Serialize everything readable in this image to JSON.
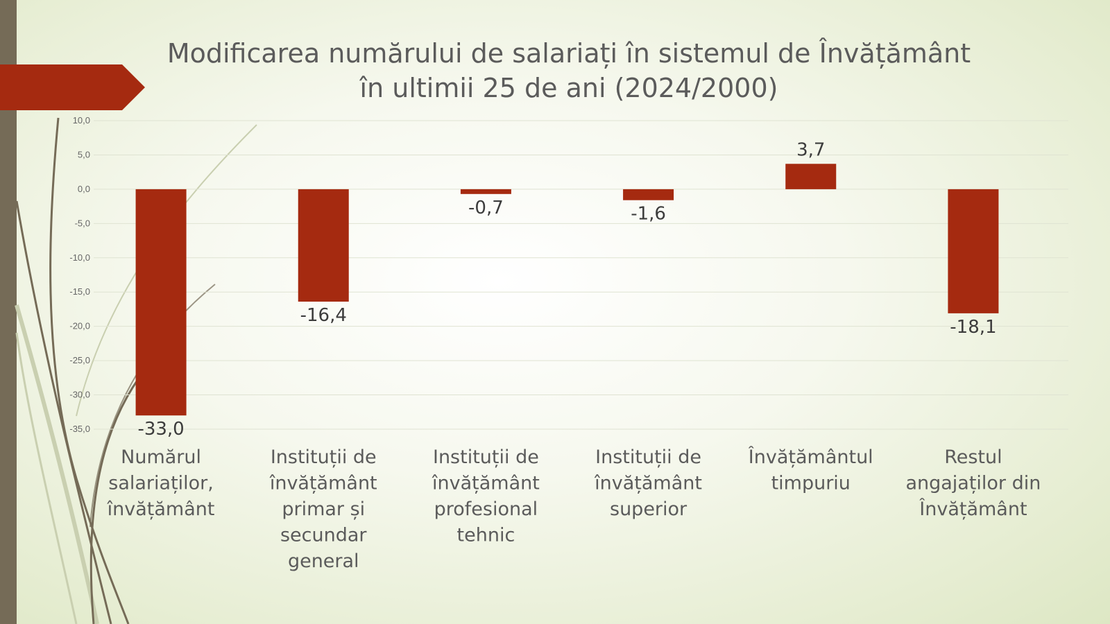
{
  "title": {
    "line1": "Modificarea numărului de salariați în sistemul de Învățământ",
    "line2": "în ultimii 25 de ani (2024/2000)"
  },
  "colors": {
    "bar": "#a52a10",
    "accent_banner": "#a52a10",
    "side_bar": "#756b57",
    "grid": "#dfe3d2",
    "text": "#4a4a4a"
  },
  "chart_data": {
    "type": "bar",
    "categories": [
      [
        "Numărul",
        "salariaților,",
        "învățământ"
      ],
      [
        "Instituții de",
        "învățământ",
        "primar și",
        "secundar",
        "general"
      ],
      [
        "Instituții de",
        "învățământ",
        "profesional",
        "tehnic"
      ],
      [
        "Instituții de",
        "învățământ",
        "superior"
      ],
      [
        "Învățământul",
        "timpuriu"
      ],
      [
        "Restul",
        "angajaților din",
        "Învățământ"
      ]
    ],
    "values": [
      -33.0,
      -16.4,
      -0.7,
      -1.6,
      3.7,
      -18.1
    ],
    "data_labels": [
      "-33,0",
      "-16,4",
      "-0,7",
      "-1,6",
      "3,7",
      "-18,1"
    ],
    "yticks": [
      "10,0",
      "5,0",
      "0,0",
      "-5,0",
      "-10,0",
      "-15,0",
      "-20,0",
      "-25,0",
      "-30,0",
      "-35,0"
    ],
    "ylim": [
      -35,
      10
    ],
    "grid": true,
    "legend": "none"
  }
}
